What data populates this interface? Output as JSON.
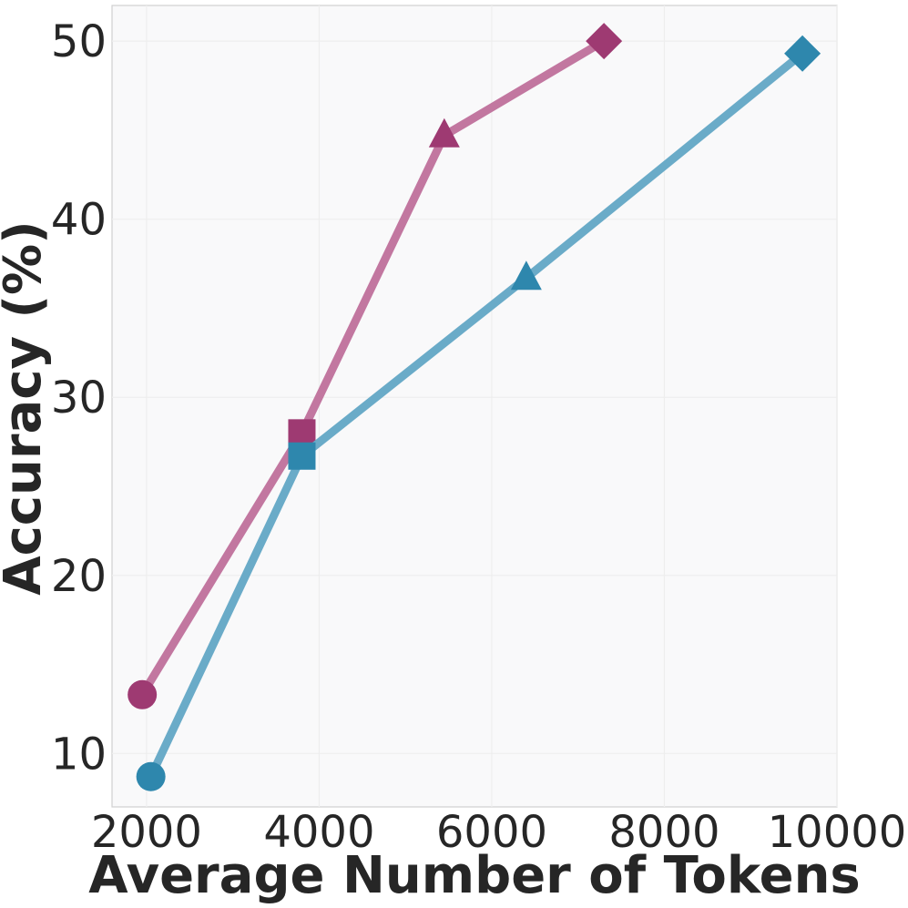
{
  "chart_data": {
    "type": "line",
    "title": "",
    "xlabel": "Average Number of Tokens",
    "ylabel": "Accuracy (%)",
    "xlim": [
      1600,
      10000
    ],
    "ylim": [
      7,
      52
    ],
    "xticks": [
      2000,
      4000,
      6000,
      8000,
      10000
    ],
    "yticks": [
      10,
      20,
      30,
      40,
      50
    ],
    "grid": true,
    "legend": "none",
    "series": [
      {
        "color": "#9e3a72",
        "line_color": "#c277a0",
        "points": [
          {
            "x": 1950,
            "y": 13.3,
            "marker": "circle"
          },
          {
            "x": 3800,
            "y": 28.0,
            "marker": "square"
          },
          {
            "x": 5450,
            "y": 44.7,
            "marker": "triangle"
          },
          {
            "x": 7300,
            "y": 50.0,
            "marker": "diamond"
          }
        ]
      },
      {
        "color": "#2e87ad",
        "line_color": "#6aabc8",
        "points": [
          {
            "x": 2050,
            "y": 8.7,
            "marker": "circle"
          },
          {
            "x": 3800,
            "y": 26.7,
            "marker": "square"
          },
          {
            "x": 6400,
            "y": 36.7,
            "marker": "triangle"
          },
          {
            "x": 9600,
            "y": 49.3,
            "marker": "diamond"
          }
        ]
      }
    ]
  }
}
